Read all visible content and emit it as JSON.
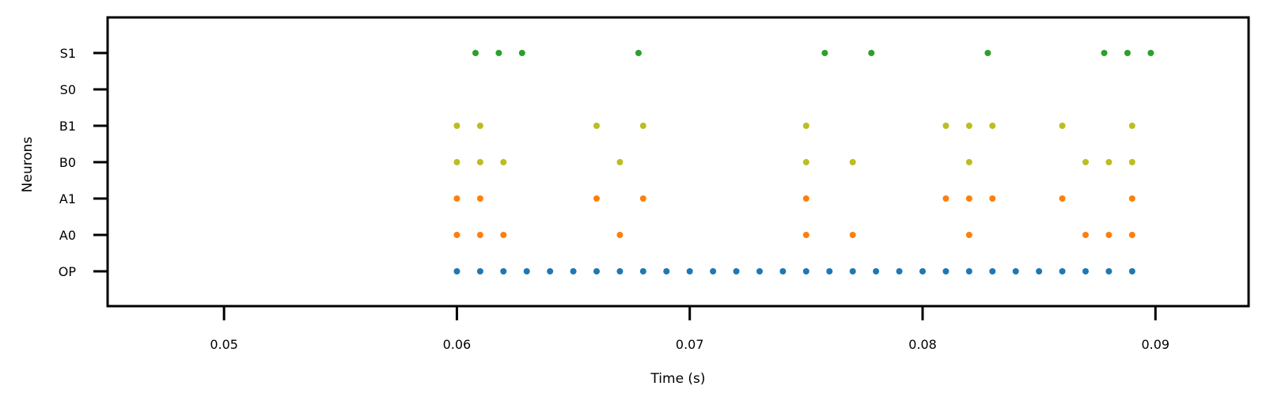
{
  "chart_data": {
    "type": "scatter",
    "title": "",
    "xlabel": "Time (s)",
    "ylabel": "Neurons",
    "xlim": [
      0.045,
      0.094
    ],
    "x_ticks": [
      0.05,
      0.06,
      0.07,
      0.08,
      0.09
    ],
    "x_tick_labels": [
      "0.05",
      "0.06",
      "0.07",
      "0.08",
      "0.09"
    ],
    "categories": [
      "OP",
      "A0",
      "A1",
      "B0",
      "B1",
      "S0",
      "S1"
    ],
    "grid": false,
    "legend": "none",
    "series": [
      {
        "neuron": "OP",
        "color": "#1f77b4",
        "x": [
          0.06,
          0.061,
          0.062,
          0.063,
          0.064,
          0.065,
          0.066,
          0.067,
          0.068,
          0.069,
          0.07,
          0.071,
          0.072,
          0.073,
          0.074,
          0.075,
          0.076,
          0.077,
          0.078,
          0.079,
          0.08,
          0.081,
          0.082,
          0.083,
          0.084,
          0.085,
          0.086,
          0.087,
          0.088,
          0.089
        ]
      },
      {
        "neuron": "A0",
        "color": "#ff7f0e",
        "x": [
          0.06,
          0.061,
          0.062,
          0.067,
          0.075,
          0.077,
          0.082,
          0.087,
          0.088,
          0.089
        ]
      },
      {
        "neuron": "A1",
        "color": "#ff7f0e",
        "x": [
          0.06,
          0.061,
          0.066,
          0.068,
          0.075,
          0.081,
          0.082,
          0.083,
          0.086,
          0.089
        ]
      },
      {
        "neuron": "B0",
        "color": "#bcbd22",
        "x": [
          0.06,
          0.061,
          0.062,
          0.067,
          0.075,
          0.077,
          0.082,
          0.087,
          0.088,
          0.089
        ]
      },
      {
        "neuron": "B1",
        "color": "#bcbd22",
        "x": [
          0.06,
          0.061,
          0.066,
          0.068,
          0.075,
          0.081,
          0.082,
          0.083,
          0.086,
          0.089
        ]
      },
      {
        "neuron": "S0",
        "color": "#2ca02c",
        "x": []
      },
      {
        "neuron": "S1",
        "color": "#2ca02c",
        "x": [
          0.0608,
          0.0618,
          0.0628,
          0.0678,
          0.0758,
          0.0778,
          0.0828,
          0.0878,
          0.0888,
          0.0898
        ]
      }
    ]
  }
}
